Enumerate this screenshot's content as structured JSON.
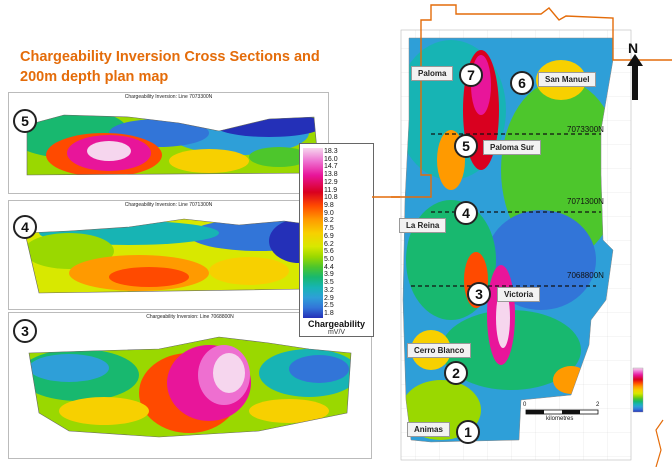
{
  "title": {
    "line1": "Chargeability Inversion Cross Sections and",
    "line2": "200m depth plan map"
  },
  "sections": [
    {
      "number": "5",
      "title": "Chargeability Inversion: Line 7073300N"
    },
    {
      "number": "4",
      "title": "Chargeability Inversion: Line 7071300N"
    },
    {
      "number": "3",
      "title": "Chargeability Inversion: Line 7068800N"
    }
  ],
  "legend": {
    "values": [
      "18.3",
      "16.0",
      "14.7",
      "13.8",
      "12.9",
      "11.9",
      "10.8",
      "9.8",
      "9.0",
      "8.2",
      "7.5",
      "6.9",
      "6.2",
      "5.6",
      "5.0",
      "4.4",
      "3.9",
      "3.5",
      "3.2",
      "2.9",
      "2.5",
      "1.8"
    ],
    "title": "Chargeability",
    "unit": "mV/V"
  },
  "map": {
    "prospects": [
      {
        "number": "7",
        "label": "Paloma"
      },
      {
        "number": "6",
        "label": "San Manuel"
      },
      {
        "number": "5",
        "label": "Paloma Sur"
      },
      {
        "number": "4",
        "label": "La Reina"
      },
      {
        "number": "3",
        "label": "Victoria"
      },
      {
        "number": "2",
        "label": "Cerro Blanco"
      },
      {
        "number": "1",
        "label": "Animas"
      }
    ],
    "lines": [
      "7073300N",
      "7071300N",
      "7068800N"
    ],
    "north": "N",
    "scale": {
      "start": "0",
      "end": "2",
      "unit": "kilometres"
    }
  },
  "colors": {
    "title": "#e46c0a",
    "boundary": "#e46c0a",
    "ramp": [
      "#f6d6ee",
      "#ee6fd0",
      "#e8159a",
      "#d9001f",
      "#ff4a00",
      "#ff9a00",
      "#f7d000",
      "#d8e800",
      "#9ad800",
      "#4dc62c",
      "#18b86f",
      "#17b4b4",
      "#2e9fd8",
      "#3275d8",
      "#2f4fd0",
      "#2430b8"
    ]
  }
}
